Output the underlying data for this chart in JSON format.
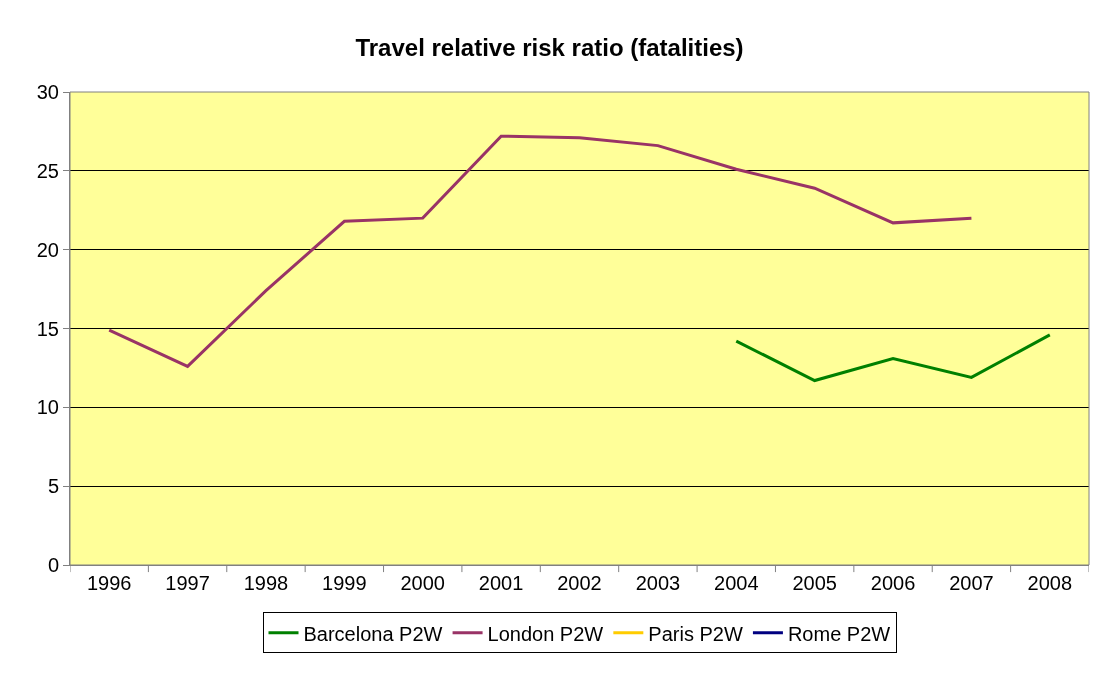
{
  "chart_data": {
    "type": "line",
    "title": "Travel relative risk ratio (fatalities)",
    "categories": [
      "1996",
      "1997",
      "1998",
      "1999",
      "2000",
      "2001",
      "2002",
      "2003",
      "2004",
      "2005",
      "2006",
      "2007",
      "2008"
    ],
    "series": [
      {
        "name": "Barcelona P2W",
        "color": "#008000",
        "values": [
          null,
          null,
          null,
          null,
          null,
          null,
          null,
          null,
          14.2,
          11.7,
          13.1,
          11.9,
          14.6
        ]
      },
      {
        "name": "London P2W",
        "color": "#993366",
        "values": [
          14.9,
          12.6,
          17.4,
          21.8,
          22.0,
          27.2,
          27.1,
          26.6,
          25.1,
          23.9,
          21.7,
          22.0,
          null
        ]
      },
      {
        "name": "Paris P2W",
        "color": "#ffcc00",
        "values": [
          null,
          null,
          null,
          null,
          null,
          null,
          null,
          null,
          null,
          null,
          null,
          null,
          null
        ]
      },
      {
        "name": "Rome P2W",
        "color": "#000080",
        "values": [
          null,
          null,
          null,
          null,
          null,
          null,
          null,
          null,
          null,
          null,
          null,
          null,
          null
        ]
      }
    ],
    "ylim": [
      0,
      30
    ],
    "yticks": [
      0,
      5,
      10,
      15,
      20,
      25,
      30
    ],
    "grid": "y",
    "legend": "bottom",
    "marker": "none",
    "line_style": "solid"
  }
}
